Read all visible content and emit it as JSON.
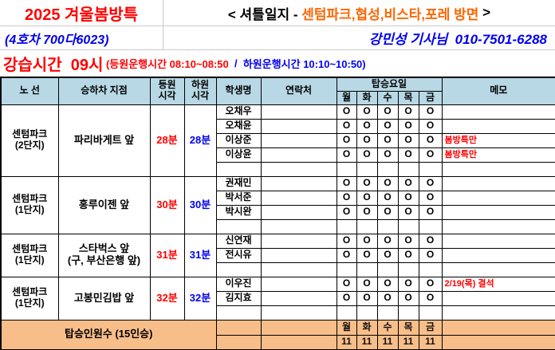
{
  "header": {
    "season_title": "2025 겨울봄방특",
    "bus_id": "(4호차 700다6023)",
    "route_heading_prefix": "< 셔틀일지 - ",
    "route_heading_destinations": "센텀파크,협성,비스타,포레 방면",
    "route_heading_suffix": " >",
    "driver_info": "강민성 기사님  010-7501-6288",
    "class_time_label": "강습시간  09시",
    "pickup_window": " (등원운행시간 08:10~08:50",
    "window_separator": "  /  ",
    "dropoff_window": "하원운행시간 10:10~10:50)"
  },
  "table": {
    "columns": {
      "route": "노 선",
      "stop": "승하차 지점",
      "pickup": "등원\n시각",
      "dropoff": "하원\n시각",
      "student": "학생명",
      "contact": "연락처",
      "days_group": "탑승요일",
      "days": [
        "월",
        "화",
        "수",
        "목",
        "금"
      ],
      "memo": "메모"
    },
    "groups": [
      {
        "route": "센텀파크\n(2단지)",
        "stop": "파리바게트 앞",
        "pickup": "28분",
        "dropoff": "28분",
        "rows": [
          {
            "name": "오채우",
            "contact": "",
            "days": [
              "O",
              "O",
              "O",
              "O",
              "O"
            ],
            "memo": ""
          },
          {
            "name": "오채윤",
            "contact": "",
            "days": [
              "O",
              "O",
              "O",
              "O",
              "O"
            ],
            "memo": ""
          },
          {
            "name": "이상준",
            "contact": "",
            "days": [
              "O",
              "O",
              "O",
              "O",
              "O"
            ],
            "memo": "봄방특만"
          },
          {
            "name": "이상윤",
            "contact": "",
            "days": [
              "O",
              "O",
              "O",
              "O",
              "O"
            ],
            "memo": "봄방특만"
          },
          {
            "name": "",
            "contact": "",
            "days": [
              "",
              "",
              "",
              "",
              ""
            ],
            "memo": ""
          }
        ]
      },
      {
        "route": "센텀파크\n(1단지)",
        "stop": "홍루이젠 앞",
        "pickup": "30분",
        "dropoff": "30분",
        "rows": [
          {
            "name": "권재민",
            "contact": "",
            "days": [
              "O",
              "O",
              "O",
              "O",
              "O"
            ],
            "memo": ""
          },
          {
            "name": "박서준",
            "contact": "",
            "days": [
              "O",
              "O",
              "O",
              "O",
              "O"
            ],
            "memo": ""
          },
          {
            "name": "박시완",
            "contact": "",
            "days": [
              "O",
              "O",
              "O",
              "O",
              "O"
            ],
            "memo": ""
          },
          {
            "name": "",
            "contact": "",
            "days": [
              "",
              "",
              "",
              "",
              ""
            ],
            "memo": ""
          }
        ]
      },
      {
        "route": "센텀파크\n(1단지)",
        "stop": "스타벅스 앞\n(구, 부산은행 앞)",
        "pickup": "31분",
        "dropoff": "31분",
        "rows": [
          {
            "name": "신연재",
            "contact": "",
            "days": [
              "O",
              "O",
              "O",
              "O",
              "O"
            ],
            "memo": ""
          },
          {
            "name": "전시유",
            "contact": "",
            "days": [
              "O",
              "O",
              "O",
              "O",
              "O"
            ],
            "memo": ""
          },
          {
            "name": "",
            "contact": "",
            "days": [
              "",
              "",
              "",
              "",
              ""
            ],
            "memo": ""
          }
        ]
      },
      {
        "route": "센텀파크\n(1단지)",
        "stop": "고봉민김밥 앞",
        "pickup": "32분",
        "dropoff": "32분",
        "rows": [
          {
            "name": "이우진",
            "contact": "",
            "days": [
              "O",
              "O",
              "O",
              "O",
              "O"
            ],
            "memo": "2/19(목) 결석"
          },
          {
            "name": "김지효",
            "contact": "",
            "days": [
              "O",
              "O",
              "O",
              "O",
              "O"
            ],
            "memo": ""
          },
          {
            "name": "",
            "contact": "",
            "days": [
              "",
              "",
              "",
              "",
              ""
            ],
            "memo": ""
          }
        ]
      }
    ],
    "footer": {
      "label": "탑승인원수 (15인승)",
      "days": [
        "월",
        "화",
        "수",
        "목",
        "금"
      ],
      "counts": [
        "11",
        "11",
        "11",
        "11",
        "11"
      ]
    }
  },
  "colors": {
    "red": "#FF0000",
    "blue": "#0000EE",
    "orange": "#FF6600",
    "header_bg": "#B8D8E6",
    "footer_bg": "#F8BE8A"
  }
}
